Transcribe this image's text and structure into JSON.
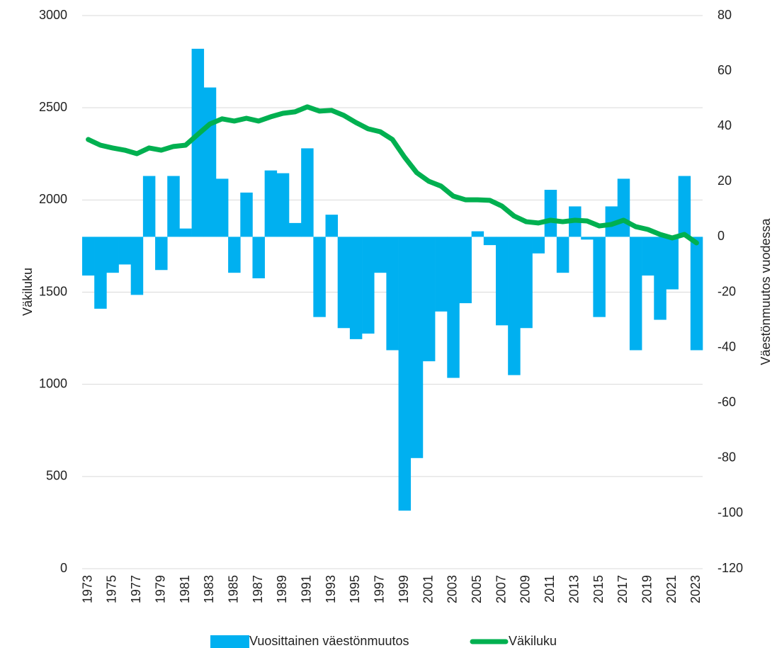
{
  "chart_data": {
    "type": "bar_line",
    "categories": [
      "1973",
      null,
      "1975",
      null,
      "1977",
      null,
      "1979",
      null,
      "1981",
      null,
      "1983",
      null,
      "1985",
      null,
      "1987",
      null,
      "1989",
      null,
      "1991",
      null,
      "1993",
      null,
      "1995",
      null,
      "1997",
      null,
      "1999",
      null,
      "2001",
      null,
      "2003",
      null,
      "2005",
      null,
      "2007",
      null,
      "2009",
      null,
      "2011",
      null,
      "2013",
      null,
      "2015",
      null,
      "2017",
      null,
      "2019",
      null,
      "2021",
      null,
      "2023"
    ],
    "series": [
      {
        "name": "Vuosittainen väestönmuutos",
        "color": "#00b0f0",
        "axis": "y2",
        "kind": "bar",
        "values": [
          -14,
          -26,
          -13,
          -10,
          -21,
          22,
          -12,
          22,
          3,
          68,
          54,
          21,
          -13,
          16,
          -15,
          24,
          23,
          5,
          32,
          -29,
          8,
          -33,
          -37,
          -35,
          -13,
          -41,
          -99,
          -80,
          -45,
          -27,
          -51,
          -24,
          2,
          -3,
          -32,
          -50,
          -33,
          -6,
          17,
          -13,
          11,
          -1,
          -29,
          11,
          21,
          -41,
          -14,
          -30,
          -19,
          22,
          -41
        ]
      },
      {
        "name": "Väkiluku",
        "color": "#00b050",
        "axis": "y",
        "kind": "line",
        "values": [
          2328,
          2297,
          2282,
          2270,
          2251,
          2282,
          2270,
          2290,
          2297,
          2355,
          2412,
          2440,
          2428,
          2443,
          2428,
          2451,
          2470,
          2478,
          2505,
          2482,
          2486,
          2459,
          2420,
          2386,
          2370,
          2328,
          2232,
          2148,
          2101,
          2075,
          2021,
          2001,
          2001,
          1998,
          1967,
          1913,
          1882,
          1875,
          1890,
          1882,
          1890,
          1886,
          1859,
          1867,
          1890,
          1855,
          1840,
          1813,
          1794,
          1813,
          1767
        ]
      }
    ],
    "y_label": "Väkiluku",
    "y2_label": "Väestönmuutos vuodessa",
    "ylim": [
      0,
      3000
    ],
    "yticks": [
      0,
      500,
      1000,
      1500,
      2000,
      2500,
      3000
    ],
    "y2lim": [
      -120,
      80
    ],
    "y2ticks": [
      -120,
      -100,
      -80,
      -60,
      -40,
      -20,
      0,
      20,
      40,
      60,
      80
    ],
    "grid": true,
    "legend": "bottom"
  }
}
